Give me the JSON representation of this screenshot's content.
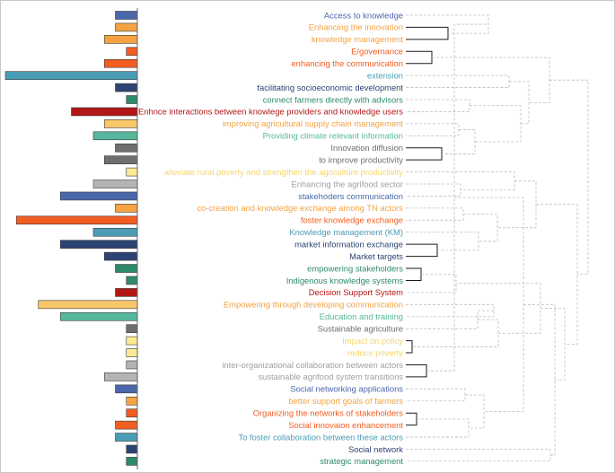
{
  "chart_data": {
    "type": "bar",
    "orientation": "horizontal",
    "dendrogram": true,
    "x_direction": "right-to-left",
    "categories": [
      "Access to knowledge",
      "Enhancing the innovation",
      "knowledge management",
      "E/governance",
      "enhancing the  communication",
      "extension",
      "facilitating socioeconomic development",
      "connect farmers directly with advisors",
      "Enhnce interactions between knowlege providers and knowledge users",
      "improving agricultural supply chain management",
      "Providing climate relevant information",
      "Innovation diffusion",
      "to improve productivity",
      "alleviate rural poverty and strengthen the agriculture productivity",
      "Enhancing the agrifood sector",
      "stakehoders communication",
      "co-creation and knowledge exchange among TN actors",
      "foster knowledge exchange",
      "Knowledge management (KM)",
      "market information exchange",
      "Market targets",
      "empowering stakeholders",
      "Indigenous knowledge systems",
      "Decision Support System",
      "Empowering through developing communication",
      "Education and training",
      "Sustainable agriculture",
      "Impact on policy",
      "reduce poverty",
      "inter-organizational collaboration between actors",
      "sustainable agrifood system transitions",
      "Social networking applications",
      "better support goals of farmers",
      "Organizing the networks of stakeholders",
      "Social innovaion enhancement",
      "To foster collaboration between these actors",
      "Social network",
      "strategic management"
    ],
    "values": [
      2,
      2,
      3,
      1,
      3,
      12,
      2,
      1,
      6,
      3,
      4,
      2,
      3,
      1,
      4,
      7,
      2,
      11,
      4,
      7,
      3,
      2,
      1,
      2,
      9,
      7,
      1,
      1,
      1,
      1,
      3,
      2,
      1,
      1,
      2,
      2,
      1,
      1
    ],
    "colors": [
      "#4a67aa",
      "#f5a342",
      "#f5a342",
      "#f25d22",
      "#f25d22",
      "#4a9db5",
      "#2d4373",
      "#2e8a6a",
      "#b01716",
      "#f9c66a",
      "#55b79b",
      "#6e6e6e",
      "#6e6e6e",
      "#fbea91",
      "#b4b4b4",
      "#4a67aa",
      "#f5a342",
      "#f25d22",
      "#4a9db5",
      "#2d4373",
      "#2d4373",
      "#2e8a6a",
      "#2e8a6a",
      "#b01716",
      "#f9c66a",
      "#55b79b",
      "#6e6e6e",
      "#fbea91",
      "#fbea91",
      "#b4b4b4",
      "#b4b4b4",
      "#4a67aa",
      "#f5a342",
      "#f25d22",
      "#f25d22",
      "#4a9db5",
      "#2d4373",
      "#2e8a6a"
    ],
    "label_colors": [
      "#4a67aa",
      "#f5a342",
      "#f5a342",
      "#f25d22",
      "#f25d22",
      "#4a9db5",
      "#2d4373",
      "#2e8a6a",
      "#b01716",
      "#f5a342",
      "#55b79b",
      "#6e6e6e",
      "#6e6e6e",
      "#f5d66a",
      "#a0a0a0",
      "#4a67aa",
      "#f5a342",
      "#f25d22",
      "#4a9db5",
      "#2d4373",
      "#2d4373",
      "#2e8a6a",
      "#2e8a6a",
      "#b01716",
      "#f5a342",
      "#55b79b",
      "#6e6e6e",
      "#f5d66a",
      "#f5d66a",
      "#a0a0a0",
      "#a0a0a0",
      "#4a67aa",
      "#f5a342",
      "#f25d22",
      "#f25d22",
      "#4a9db5",
      "#2d4373",
      "#2e8a6a"
    ],
    "highlighted_pairs": [
      [
        1,
        2
      ],
      [
        3,
        4
      ],
      [
        11,
        12
      ],
      [
        19,
        20
      ],
      [
        21,
        22
      ],
      [
        27,
        28
      ],
      [
        29,
        30
      ],
      [
        33,
        34
      ]
    ],
    "title": "",
    "xlabel": "",
    "ylabel": ""
  }
}
